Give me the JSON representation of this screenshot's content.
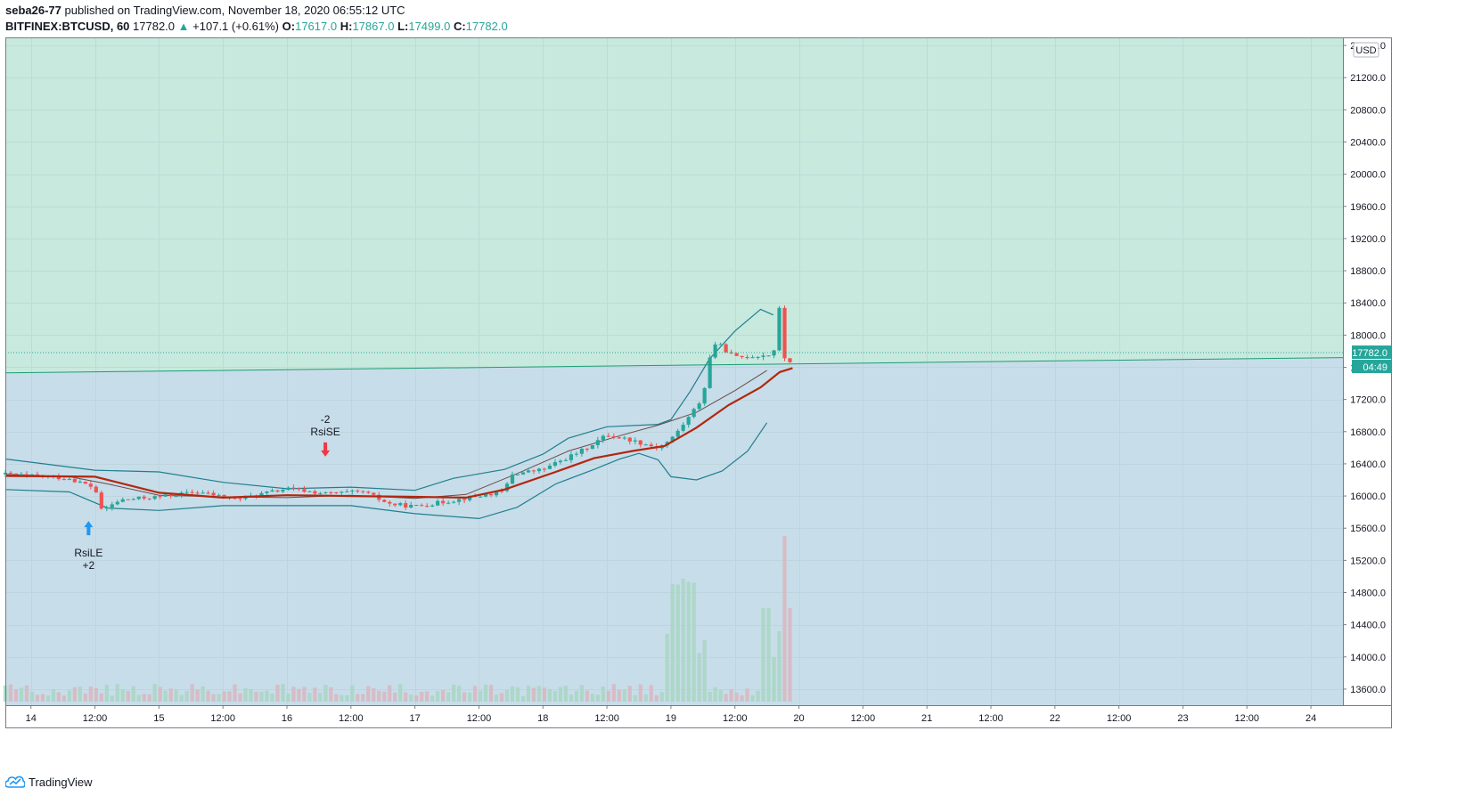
{
  "header": {
    "author": "seba26-77",
    "published": "published on TradingView.com, November 18, 2020 06:55:12 UTC",
    "symbol": "BITFINEX:BTCUSD, 60",
    "last": "17782.0",
    "change_arrow": "▲",
    "change": "+107.1 (+0.61%)",
    "o_label": "O:",
    "o_value": "17617.0",
    "h_label": "H:",
    "h_value": "17867.0",
    "l_label": "L:",
    "l_value": "17499.0",
    "c_label": "C:",
    "c_value": "17782.0"
  },
  "footer": {
    "brand": "TradingView"
  },
  "colors": {
    "up": "#26a69a",
    "down": "#ef5350",
    "zone_upper": "#c8e9de",
    "zone_lower": "#c7dde9",
    "bb_band": "#1f7f8f",
    "bb_basis": "#6b4a4a",
    "ma": "#b2270f",
    "last_price_bg": "#26a69a",
    "buy_arrow": "#2196f3",
    "sell_arrow": "#f23645"
  },
  "chart_data": {
    "type": "candlestick",
    "symbol": "BITFINEX:BTCUSD",
    "interval": "60",
    "currency": "USD",
    "grid": true,
    "ylim": [
      13400,
      21700
    ],
    "y_ticks": [
      "21600.0",
      "21200.0",
      "20800.0",
      "20400.0",
      "20000.0",
      "19600.0",
      "19200.0",
      "18800.0",
      "18400.0",
      "18000.0",
      "17600.0",
      "17200.0",
      "16800.0",
      "16400.0",
      "16000.0",
      "15600.0",
      "15200.0",
      "14800.0",
      "14400.0",
      "14000.0",
      "13600.0"
    ],
    "x_ticks": [
      "14",
      "12:00",
      "15",
      "12:00",
      "16",
      "12:00",
      "17",
      "12:00",
      "18",
      "12:00",
      "19",
      "12:00",
      "20",
      "12:00",
      "21",
      "12:00",
      "22",
      "12:00",
      "23",
      "12:00",
      "24"
    ],
    "x_range_days": [
      -0.2,
      10.25
    ],
    "last_price": "17782.0",
    "countdown": "04:49",
    "trendline": {
      "start_day": -0.2,
      "start_price": 17530,
      "end_day": 10.25,
      "end_price": 17720
    },
    "bb_upper": [
      [
        -0.2,
        16460
      ],
      [
        0.5,
        16320
      ],
      [
        1.0,
        16300
      ],
      [
        1.5,
        16170
      ],
      [
        2.0,
        16090
      ],
      [
        2.5,
        16110
      ],
      [
        3.0,
        16070
      ],
      [
        3.3,
        16220
      ],
      [
        3.7,
        16330
      ],
      [
        4.0,
        16520
      ],
      [
        4.2,
        16720
      ],
      [
        4.5,
        16860
      ],
      [
        4.9,
        16890
      ],
      [
        5.0,
        16950
      ],
      [
        5.15,
        17300
      ],
      [
        5.3,
        17700
      ],
      [
        5.5,
        18050
      ],
      [
        5.7,
        18320
      ],
      [
        5.8,
        18250
      ]
    ],
    "bb_lower": [
      [
        -0.2,
        16080
      ],
      [
        0.3,
        16050
      ],
      [
        0.6,
        15850
      ],
      [
        1.0,
        15820
      ],
      [
        1.5,
        15880
      ],
      [
        2.0,
        15880
      ],
      [
        2.5,
        15880
      ],
      [
        3.0,
        15780
      ],
      [
        3.5,
        15720
      ],
      [
        3.8,
        15860
      ],
      [
        4.1,
        16150
      ],
      [
        4.4,
        16330
      ],
      [
        4.6,
        16460
      ],
      [
        4.75,
        16530
      ],
      [
        4.9,
        16450
      ],
      [
        5.0,
        16240
      ],
      [
        5.2,
        16200
      ],
      [
        5.4,
        16310
      ],
      [
        5.6,
        16560
      ],
      [
        5.75,
        16910
      ]
    ],
    "bb_basis": [
      [
        -0.2,
        16270
      ],
      [
        0.3,
        16240
      ],
      [
        0.6,
        16150
      ],
      [
        1.0,
        16010
      ],
      [
        1.5,
        15990
      ],
      [
        2.0,
        15980
      ],
      [
        2.5,
        16010
      ],
      [
        3.0,
        15970
      ],
      [
        3.4,
        16020
      ],
      [
        3.8,
        16280
      ],
      [
        4.2,
        16560
      ],
      [
        4.6,
        16750
      ],
      [
        4.9,
        16880
      ],
      [
        5.2,
        17040
      ],
      [
        5.5,
        17310
      ],
      [
        5.75,
        17560
      ]
    ],
    "ma": [
      [
        -0.2,
        16250
      ],
      [
        0.5,
        16240
      ],
      [
        1.0,
        16040
      ],
      [
        1.5,
        15980
      ],
      [
        2.0,
        16010
      ],
      [
        2.5,
        16000
      ],
      [
        3.0,
        15990
      ],
      [
        3.4,
        15980
      ],
      [
        3.7,
        16080
      ],
      [
        4.1,
        16300
      ],
      [
        4.4,
        16470
      ],
      [
        4.7,
        16560
      ],
      [
        4.95,
        16620
      ],
      [
        5.2,
        16850
      ],
      [
        5.45,
        17130
      ],
      [
        5.7,
        17350
      ],
      [
        5.85,
        17540
      ],
      [
        5.95,
        17590
      ]
    ],
    "signals": [
      {
        "type": "long",
        "day": 0.45,
        "price": 15800,
        "text1": "RsiLE",
        "text2": "+2"
      },
      {
        "type": "short",
        "day": 2.3,
        "price": 16400,
        "text1": "-2",
        "text2": "RsiSE"
      }
    ]
  }
}
